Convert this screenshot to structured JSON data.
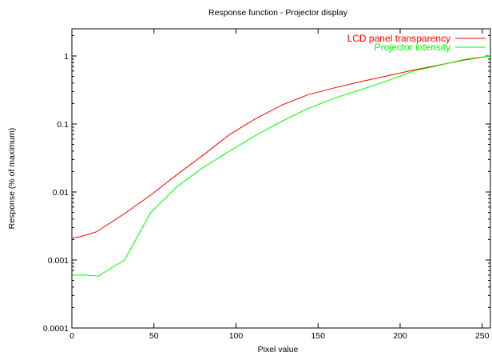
{
  "chart_data": {
    "type": "line",
    "title": "Response function - Projector display",
    "xlabel": "Pixel value",
    "ylabel": "Response (% of maximum)",
    "xlim": [
      0,
      255
    ],
    "ylim": [
      0.0001,
      1
    ],
    "yscale": "log",
    "grid": false,
    "legend_position": "top-right",
    "x_ticks": [
      "0",
      "50",
      "100",
      "150",
      "200",
      "250"
    ],
    "y_ticks": [
      "0.0001",
      "0.001",
      "0.01",
      "0.1",
      "1"
    ],
    "series": [
      {
        "name": "LCD panel transparency",
        "color": "#ff0000",
        "points": [
          [
            0,
            0.0021
          ],
          [
            5,
            0.0022
          ],
          [
            15,
            0.0026
          ],
          [
            32,
            0.0048
          ],
          [
            48,
            0.009
          ],
          [
            64,
            0.018
          ],
          [
            80,
            0.035
          ],
          [
            96,
            0.07
          ],
          [
            112,
            0.12
          ],
          [
            128,
            0.19
          ],
          [
            144,
            0.27
          ],
          [
            160,
            0.34
          ],
          [
            176,
            0.42
          ],
          [
            192,
            0.51
          ],
          [
            208,
            0.62
          ],
          [
            224,
            0.74
          ],
          [
            240,
            0.88
          ],
          [
            255,
            1.0
          ]
        ]
      },
      {
        "name": "Projector intensity",
        "color": "#00ff00",
        "points": [
          [
            0,
            0.0006
          ],
          [
            8,
            0.0006
          ],
          [
            16,
            0.00058
          ],
          [
            32,
            0.001
          ],
          [
            48,
            0.005
          ],
          [
            64,
            0.012
          ],
          [
            80,
            0.023
          ],
          [
            96,
            0.04
          ],
          [
            112,
            0.068
          ],
          [
            128,
            0.11
          ],
          [
            144,
            0.17
          ],
          [
            160,
            0.24
          ],
          [
            176,
            0.32
          ],
          [
            192,
            0.43
          ],
          [
            208,
            0.6
          ],
          [
            224,
            0.73
          ],
          [
            240,
            0.9
          ],
          [
            255,
            1.0
          ]
        ]
      }
    ]
  }
}
